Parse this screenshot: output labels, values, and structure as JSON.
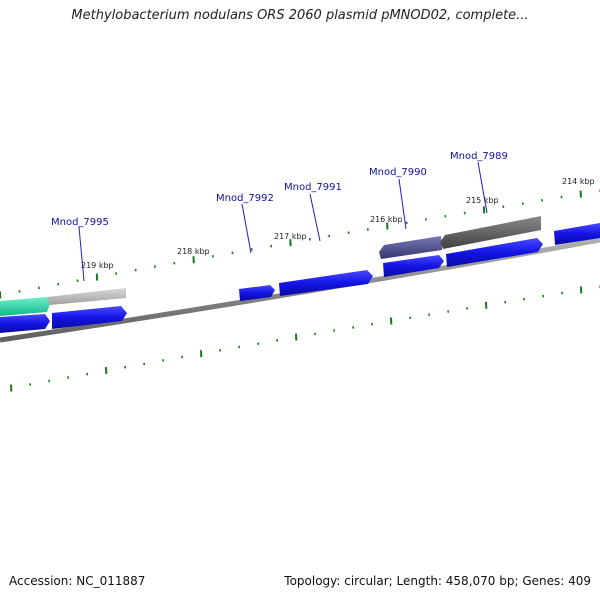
{
  "title": "Methylobacterium nodulans ORS 2060 plasmid pMNOD02, complete...",
  "footer": {
    "accession": "Accession: NC_011887",
    "summary": "Topology: circular; Length: 458,070 bp; Genes: 409"
  },
  "ticks": [
    "214 kbp",
    "215 kbp",
    "216 kbp",
    "217 kbp",
    "218 kbp",
    "219 kbp"
  ],
  "gene_labels": [
    "Mnod_7989",
    "Mnod_7990",
    "Mnod_7991",
    "Mnod_7992",
    "Mnod_7995"
  ],
  "colors": {
    "backbone": "#8c8c8c",
    "cds": "#1414e6",
    "grey_gene": "#5a5a5a",
    "light_grey_gene": "#b4b4b4",
    "purple_gene": "#4a4a8c",
    "green_gene": "#20d9a0",
    "tick_mark": "#1a7a1a",
    "label_line": "#2020c0"
  }
}
